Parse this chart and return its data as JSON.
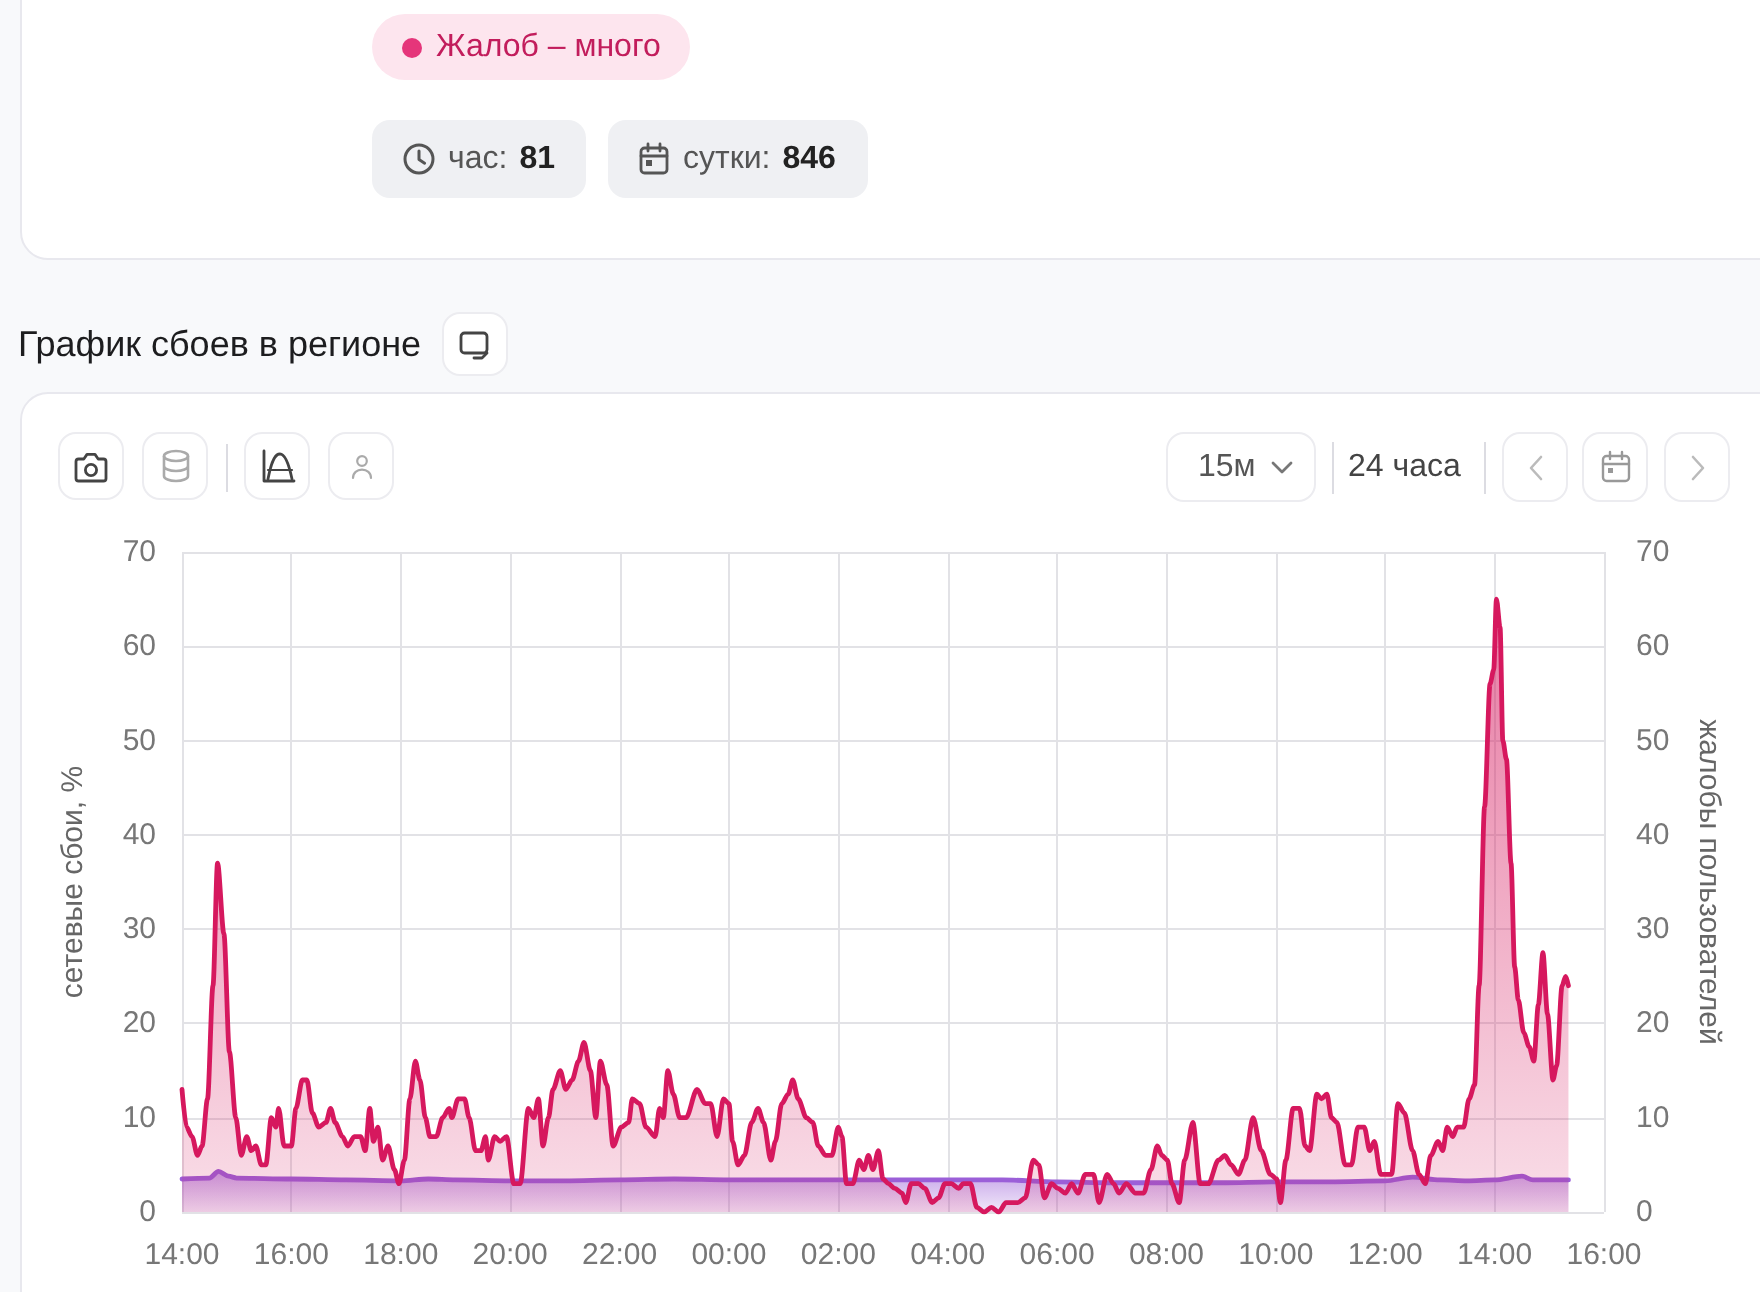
{
  "chart_data": {
    "type": "area",
    "title": "График сбоев в регионе",
    "ylabel": "сетевые сбои, %",
    "y2label": "жалобы пользователей",
    "annotations": [
      "Жалоб – много",
      "час:",
      "81",
      "сутки:",
      "846",
      "15м",
      "24 часа"
    ],
    "xlim": [
      "--01-01T14:00",
      "--01-02T16:00"
    ],
    "xticks": [
      {
        "value": "--01-01T14:00",
        "label": "14:00"
      },
      {
        "value": "--01-01T16:00",
        "label": "16:00"
      },
      {
        "value": "--01-01T18:00",
        "label": "18:00"
      },
      {
        "value": "--01-01T20:00",
        "label": "20:00"
      },
      {
        "value": "--01-01T22:00",
        "label": "22:00"
      },
      {
        "value": "--01-02T00:00",
        "label": "00:00"
      },
      {
        "value": "--01-02T02:00",
        "label": "02:00"
      },
      {
        "value": "--01-02T04:00",
        "label": "04:00"
      },
      {
        "value": "--01-02T06:00",
        "label": "06:00"
      },
      {
        "value": "--01-02T08:00",
        "label": "08:00"
      },
      {
        "value": "--01-02T10:00",
        "label": "10:00"
      },
      {
        "value": "--01-02T12:00",
        "label": "12:00"
      },
      {
        "value": "--01-02T14:00",
        "label": "14:00"
      },
      {
        "value": "--01-02T16:00",
        "label": "16:00"
      }
    ],
    "ylim": [
      0,
      70
    ],
    "yticks": [
      0,
      10,
      20,
      30,
      40,
      50,
      60,
      70
    ],
    "y2lim": [
      0,
      70
    ],
    "y2ticks": [
      0,
      10,
      20,
      30,
      40,
      50,
      60,
      70
    ],
    "grid": true,
    "series": [
      {
        "color": "#9b5fd8",
        "x": [
          "--01-01T14:00",
          "--01-01T14:30",
          "--01-01T14:40",
          "--01-01T14:51",
          "--01-01T15:00",
          "--01-01T16:00",
          "--01-01T17:00",
          "--01-01T18:00",
          "--01-01T18:30",
          "--01-01T19:00",
          "--01-01T20:00",
          "--01-01T21:00",
          "--01-01T22:00",
          "--01-01T23:00",
          "--01-02T00:00",
          "--01-02T01:00",
          "--01-02T02:00",
          "--01-02T03:00",
          "--01-02T04:00",
          "--01-02T05:00",
          "--01-02T06:00",
          "--01-02T07:00",
          "--01-02T08:00",
          "--01-02T09:00",
          "--01-02T10:00",
          "--01-02T11:00",
          "--01-02T12:00",
          "--01-02T12:30",
          "--01-02T13:00",
          "--01-02T13:30",
          "--01-02T14:00",
          "--01-02T14:30",
          "--01-02T14:42",
          "--01-02T15:00",
          "--01-02T15:21"
        ],
        "values": [
          3.5,
          3.6,
          4.3,
          3.8,
          3.6,
          3.5,
          3.4,
          3.3,
          3.5,
          3.4,
          3.3,
          3.3,
          3.4,
          3.5,
          3.4,
          3.4,
          3.4,
          3.4,
          3.4,
          3.4,
          3.2,
          3.1,
          3.1,
          3.1,
          3.2,
          3.2,
          3.3,
          3.7,
          3.4,
          3.3,
          3.4,
          3.8,
          3.4,
          3.4,
          3.4
        ]
      },
      {
        "color": "#d6185e",
        "axis": "y2",
        "x": [
          "--01-01T14:00",
          "--01-01T14:05",
          "--01-01T14:11",
          "--01-01T14:17",
          "--01-01T14:22",
          "--01-01T14:28",
          "--01-01T14:34",
          "--01-01T14:39",
          "--01-01T14:46",
          "--01-01T14:52",
          "--01-01T14:59",
          "--01-01T15:05",
          "--01-01T15:11",
          "--01-01T15:16",
          "--01-01T15:21",
          "--01-01T15:27",
          "--01-01T15:32",
          "--01-01T15:38",
          "--01-01T15:43",
          "--01-01T15:46",
          "--01-01T15:52",
          "--01-01T16:00",
          "--01-01T16:05",
          "--01-01T16:12",
          "--01-01T16:17",
          "--01-01T16:23",
          "--01-01T16:30",
          "--01-01T16:38",
          "--01-01T16:43",
          "--01-01T16:48",
          "--01-01T16:56",
          "--01-01T17:02",
          "--01-01T17:09",
          "--01-01T17:16",
          "--01-01T17:21",
          "--01-01T17:26",
          "--01-01T17:30",
          "--01-01T17:35",
          "--01-01T17:40",
          "--01-01T17:46",
          "--01-01T17:53",
          "--01-01T17:58",
          "--01-01T18:04",
          "--01-01T18:10",
          "--01-01T18:16",
          "--01-01T18:21",
          "--01-01T18:27",
          "--01-01T18:32",
          "--01-01T18:39",
          "--01-01T18:46",
          "--01-01T18:53",
          "--01-01T18:56",
          "--01-01T19:03",
          "--01-01T19:10",
          "--01-01T19:15",
          "--01-01T19:22",
          "--01-01T19:28",
          "--01-01T19:33",
          "--01-01T19:36",
          "--01-01T19:43",
          "--01-01T19:49",
          "--01-01T19:56",
          "--01-01T20:04",
          "--01-01T20:11",
          "--01-01T20:20",
          "--01-01T20:26",
          "--01-01T20:31",
          "--01-01T20:36",
          "--01-01T20:42",
          "--01-01T20:47",
          "--01-01T20:55",
          "--01-01T21:01",
          "--01-01T21:08",
          "--01-01T21:15",
          "--01-01T21:21",
          "--01-01T21:28",
          "--01-01T21:34",
          "--01-01T21:39",
          "--01-01T21:46",
          "--01-01T21:53",
          "--01-01T22:02",
          "--01-01T22:10",
          "--01-01T22:14",
          "--01-01T22:22",
          "--01-01T22:29",
          "--01-01T22:39",
          "--01-01T22:44",
          "--01-01T22:48",
          "--01-01T22:53",
          "--01-01T22:59",
          "--01-01T23:06",
          "--01-01T23:13",
          "--01-01T23:25",
          "--01-01T23:34",
          "--01-01T23:40",
          "--01-01T23:47",
          "--01-01T23:54",
          "--01-02T00:00",
          "--01-02T00:04",
          "--01-02T00:10",
          "--01-02T00:17",
          "--01-02T00:25",
          "--01-02T00:32",
          "--01-02T00:38",
          "--01-02T00:46",
          "--01-02T00:51",
          "--01-02T00:58",
          "--01-02T01:05",
          "--01-02T01:10",
          "--01-02T01:16",
          "--01-02T01:25",
          "--01-02T01:32",
          "--01-02T01:38",
          "--01-02T01:46",
          "--01-02T01:53",
          "--01-02T02:00",
          "--01-02T02:04",
          "--01-02T02:09",
          "--01-02T02:16",
          "--01-02T02:23",
          "--01-02T02:28",
          "--01-02T02:33",
          "--01-02T02:38",
          "--01-02T02:44",
          "--01-02T02:49",
          "--01-02T02:55",
          "--01-02T03:02",
          "--01-02T03:10",
          "--01-02T03:14",
          "--01-02T03:20",
          "--01-02T03:28",
          "--01-02T03:35",
          "--01-02T03:43",
          "--01-02T03:50",
          "--01-02T03:57",
          "--01-02T04:04",
          "--01-02T04:12",
          "--01-02T04:17",
          "--01-02T04:25",
          "--01-02T04:32",
          "--01-02T04:40",
          "--01-02T04:48",
          "--01-02T04:56",
          "--01-02T05:04",
          "--01-02T05:17",
          "--01-02T05:25",
          "--01-02T05:34",
          "--01-02T05:40",
          "--01-02T05:46",
          "--01-02T05:54",
          "--01-02T06:01",
          "--01-02T06:09",
          "--01-02T06:16",
          "--01-02T06:23",
          "--01-02T06:31",
          "--01-02T06:40",
          "--01-02T06:46",
          "--01-02T06:55",
          "--01-02T07:02",
          "--01-02T07:08",
          "--01-02T07:16",
          "--01-02T07:26",
          "--01-02T07:35",
          "--01-02T07:43",
          "--01-02T07:50",
          "--01-02T07:55",
          "--01-02T08:01",
          "--01-02T08:06",
          "--01-02T08:14",
          "--01-02T08:20",
          "--01-02T08:29",
          "--01-02T08:37",
          "--01-02T08:46",
          "--01-02T08:57",
          "--01-02T09:04",
          "--01-02T09:11",
          "--01-02T09:19",
          "--01-02T09:26",
          "--01-02T09:35",
          "--01-02T09:44",
          "--01-02T09:54",
          "--01-02T10:01",
          "--01-02T10:05",
          "--01-02T10:11",
          "--01-02T10:19",
          "--01-02T10:26",
          "--01-02T10:32",
          "--01-02T10:37",
          "--01-02T10:45",
          "--01-02T10:50",
          "--01-02T10:56",
          "--01-02T11:01",
          "--01-02T11:07",
          "--01-02T11:16",
          "--01-02T11:23",
          "--01-02T11:30",
          "--01-02T11:37",
          "--01-02T11:43",
          "--01-02T11:48",
          "--01-02T11:55",
          "--01-02T12:07",
          "--01-02T12:14",
          "--01-02T12:21",
          "--01-02T12:30",
          "--01-02T12:37",
          "--01-02T12:44",
          "--01-02T12:50",
          "--01-02T12:58",
          "--01-02T13:03",
          "--01-02T13:08",
          "--01-02T13:14",
          "--01-02T13:19",
          "--01-02T13:26",
          "--01-02T13:32",
          "--01-02T13:38",
          "--01-02T13:43",
          "--01-02T13:49",
          "--01-02T13:55",
          "--01-02T13:59",
          "--01-02T14:02",
          "--01-02T14:06",
          "--01-02T14:09",
          "--01-02T14:13",
          "--01-02T14:18",
          "--01-02T14:22",
          "--01-02T14:26",
          "--01-02T14:32",
          "--01-02T14:38",
          "--01-02T14:43",
          "--01-02T14:48",
          "--01-02T14:53",
          "--01-02T14:58",
          "--01-02T15:04",
          "--01-02T15:08",
          "--01-02T15:14",
          "--01-02T15:18",
          "--01-02T15:21"
        ],
        "values": [
          13,
          9,
          8,
          6,
          7,
          12,
          24,
          37,
          29.5,
          17,
          10,
          6,
          8,
          6.5,
          7,
          5,
          5,
          10,
          9,
          11,
          7,
          7,
          11,
          14,
          14,
          10.5,
          9,
          9.5,
          11,
          9.5,
          8,
          7,
          8,
          8,
          6.5,
          11,
          7.5,
          9,
          5.5,
          7,
          4.5,
          3,
          5.5,
          12,
          16,
          14,
          10,
          8,
          8,
          10,
          11,
          10,
          12,
          12,
          10,
          6.5,
          6.5,
          8,
          5.5,
          8,
          7.5,
          8,
          3,
          3,
          11,
          10,
          12,
          7,
          10,
          13,
          15,
          13,
          14,
          16,
          18,
          15,
          10,
          16,
          13.5,
          7,
          9,
          9.5,
          12,
          11.5,
          9,
          8,
          11,
          10,
          15,
          12.5,
          10,
          10,
          13,
          11.5,
          11.5,
          8,
          12,
          11.5,
          7.5,
          5,
          6,
          9.5,
          11,
          9.5,
          5.5,
          7.5,
          11.5,
          12.5,
          14,
          12,
          10,
          9.5,
          7,
          6,
          6,
          9,
          8,
          3,
          3,
          5.5,
          4.5,
          6,
          4.5,
          6.5,
          3.5,
          3,
          2.5,
          2,
          1,
          3,
          3,
          2.5,
          1,
          1.5,
          3,
          3,
          2.5,
          3,
          3,
          0.5,
          0,
          0.5,
          0,
          1,
          1,
          1.5,
          5.5,
          5,
          1.5,
          3,
          2.5,
          2,
          3,
          2,
          4,
          4,
          1,
          4,
          3,
          2,
          3,
          2,
          2,
          4.5,
          7,
          6,
          5.5,
          3,
          1,
          5.5,
          9.5,
          3,
          3,
          5.5,
          6,
          5,
          4,
          5.5,
          10,
          6.5,
          4,
          3.5,
          1,
          5.5,
          11,
          11,
          7,
          6.5,
          12.5,
          12,
          12.5,
          10,
          9.5,
          5,
          5,
          9,
          9,
          6.5,
          7.5,
          4,
          4,
          11.5,
          10.5,
          6.5,
          4,
          3,
          6,
          7.5,
          6.5,
          9,
          8,
          9,
          9,
          12,
          13.5,
          24,
          43,
          56,
          57.5,
          65,
          62,
          50,
          48,
          37,
          26,
          22.5,
          19,
          17.5,
          16,
          22,
          27.5,
          21,
          14,
          15.5,
          24,
          25,
          24
        ]
      }
    ]
  }
}
